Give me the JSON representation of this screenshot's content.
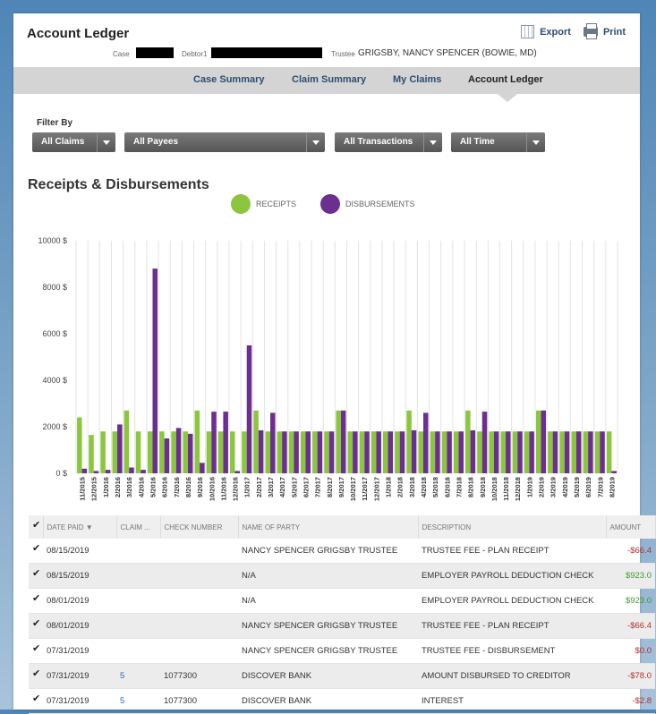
{
  "header": {
    "title": "Account Ledger",
    "export_label": "Export",
    "print_label": "Print",
    "case_label": "Case",
    "debtor_label": "Debtor1",
    "trustee_label": "Trustee",
    "trustee_value": "GRIGSBY, NANCY SPENCER (BOWIE, MD)"
  },
  "nav": {
    "tabs": [
      "Case Summary",
      "Claim Summary",
      "My Claims",
      "Account Ledger"
    ],
    "active": "Account Ledger"
  },
  "filters": {
    "label": "Filter By",
    "options": [
      "All Claims",
      "All Payees",
      "All Transactions",
      "All Time"
    ]
  },
  "section_title": "Receipts & Disbursements",
  "legend": {
    "receipts": "RECEIPTS",
    "disbursements": "DISBURSEMENTS",
    "receipts_color": "#8cc63f",
    "disbursements_color": "#6b2f8f"
  },
  "chart_data": {
    "type": "bar",
    "yticks": [
      "10000 $",
      "8000 $",
      "6000 $",
      "4000 $",
      "2000 $",
      "0 $"
    ],
    "ylim": [
      0,
      10000
    ],
    "grid": "vertical",
    "categories": [
      "11/2015",
      "12/2015",
      "1/2016",
      "2/2016",
      "3/2016",
      "4/2016",
      "5/2016",
      "6/2016",
      "7/2016",
      "8/2016",
      "9/2016",
      "10/2016",
      "11/2016",
      "12/2016",
      "1/2017",
      "2/2017",
      "3/2017",
      "4/2017",
      "5/2017",
      "6/2017",
      "7/2017",
      "8/2017",
      "9/2017",
      "10/2017",
      "11/2017",
      "12/2017",
      "1/2018",
      "2/2018",
      "3/2018",
      "4/2018",
      "5/2018",
      "6/2018",
      "7/2018",
      "8/2018",
      "9/2018",
      "10/2018",
      "11/2018",
      "12/2018",
      "1/2019",
      "2/2019",
      "3/2019",
      "4/2019",
      "5/2019",
      "6/2019",
      "7/2019",
      "8/2019"
    ],
    "series": [
      {
        "name": "RECEIPTS",
        "values": [
          2400,
          1650,
          1800,
          1800,
          2700,
          1800,
          1800,
          1800,
          1800,
          1800,
          2700,
          1800,
          1800,
          1800,
          1800,
          2700,
          1800,
          1800,
          1800,
          1800,
          1800,
          1800,
          2700,
          1800,
          1800,
          1800,
          1800,
          1800,
          2700,
          1800,
          1800,
          1800,
          1800,
          2700,
          1800,
          1800,
          1800,
          1800,
          1800,
          2700,
          1800,
          1800,
          1800,
          1800,
          1800,
          1800
        ]
      },
      {
        "name": "DISBURSEMENTS",
        "values": [
          200,
          100,
          150,
          2100,
          250,
          150,
          8800,
          1500,
          1950,
          1700,
          450,
          2650,
          2650,
          100,
          5500,
          1850,
          2600,
          1800,
          1800,
          1800,
          1800,
          1800,
          2700,
          1800,
          1800,
          1800,
          1800,
          1800,
          1850,
          2600,
          1800,
          1800,
          1800,
          1850,
          2650,
          1800,
          1800,
          1800,
          1800,
          2700,
          1800,
          1800,
          1800,
          1800,
          1800,
          100
        ]
      }
    ]
  },
  "table": {
    "columns": [
      "DATE PAID",
      "CLAIM ...",
      "CHECK NUMBER",
      "NAME OF PARTY",
      "DESCRIPTION",
      "AMOUNT"
    ],
    "rows": [
      {
        "date": "08/15/2019",
        "claim": "",
        "check": "",
        "party": "NANCY SPENCER GRIGSBY TRUSTEE",
        "desc": "TRUSTEE FEE - PLAN RECEIPT",
        "amount": "-$66.4",
        "sign": "neg"
      },
      {
        "date": "08/15/2019",
        "claim": "",
        "check": "",
        "party": "N/A",
        "desc": "EMPLOYER PAYROLL DEDUCTION CHECK",
        "amount": "$923.0",
        "sign": "pos"
      },
      {
        "date": "08/01/2019",
        "claim": "",
        "check": "",
        "party": "N/A",
        "desc": "EMPLOYER PAYROLL DEDUCTION CHECK",
        "amount": "$923.0",
        "sign": "pos"
      },
      {
        "date": "08/01/2019",
        "claim": "",
        "check": "",
        "party": "NANCY SPENCER GRIGSBY TRUSTEE",
        "desc": "TRUSTEE FEE - PLAN RECEIPT",
        "amount": "-$66.4",
        "sign": "neg"
      },
      {
        "date": "07/31/2019",
        "claim": "",
        "check": "",
        "party": "NANCY SPENCER GRIGSBY TRUSTEE",
        "desc": "TRUSTEE FEE - DISBURSEMENT",
        "amount": "$0.0",
        "sign": "neg"
      },
      {
        "date": "07/31/2019",
        "claim": "5",
        "check": "1077300",
        "party": "DISCOVER BANK",
        "desc": "AMOUNT DISBURSED TO CREDITOR",
        "amount": "-$78.0",
        "sign": "neg"
      },
      {
        "date": "07/31/2019",
        "claim": "5",
        "check": "1077300",
        "party": "DISCOVER BANK",
        "desc": "INTEREST",
        "amount": "-$2.8",
        "sign": "neg"
      }
    ]
  }
}
